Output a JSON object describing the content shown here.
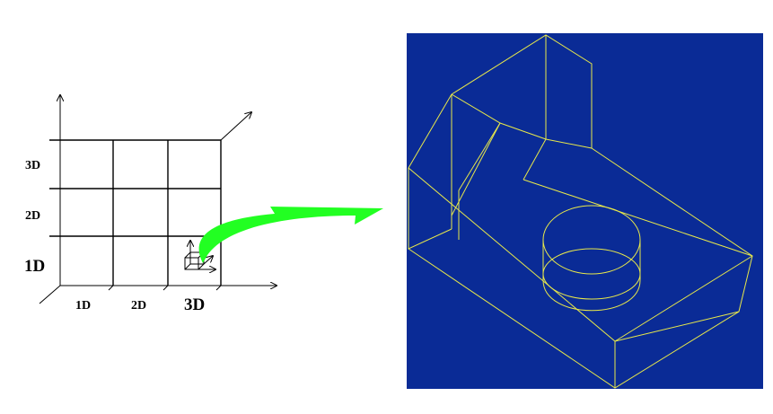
{
  "grid_labels": {
    "y_axis": [
      "3D",
      "2D",
      "1D"
    ],
    "x_axis": [
      "1D",
      "2D",
      "3D"
    ]
  },
  "colors": {
    "viewport_background": "#0a2b96",
    "wireframe": "#e8e84a",
    "arrow": "#22ff22",
    "grid": "#000000"
  }
}
